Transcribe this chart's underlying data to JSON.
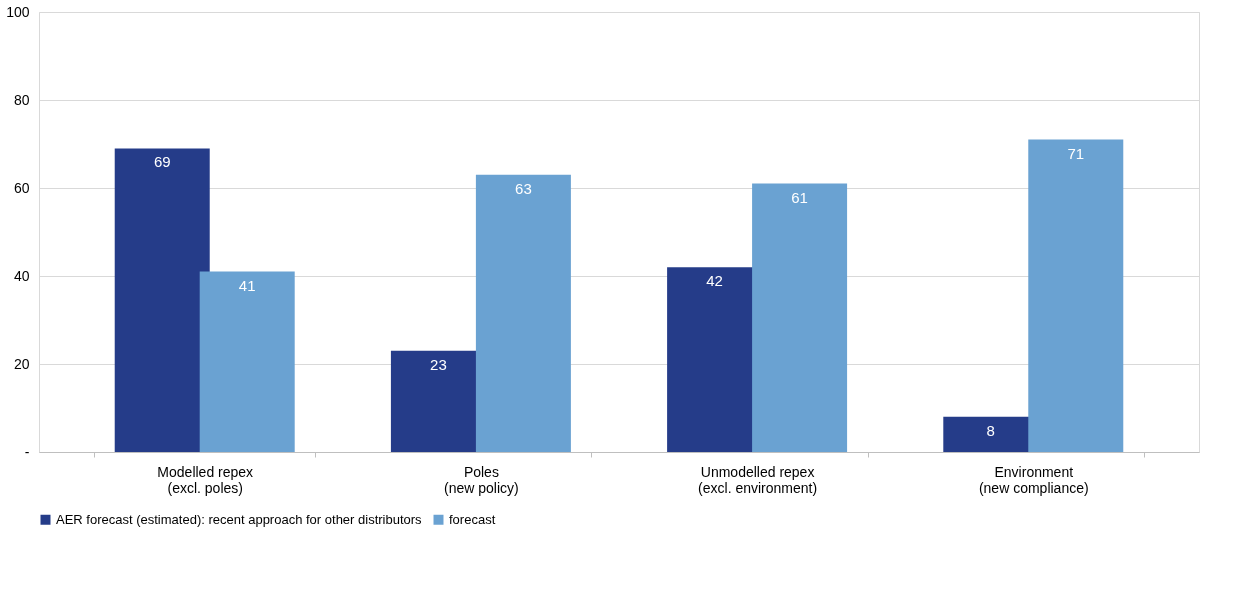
{
  "chart_data": {
    "type": "bar",
    "categories": [
      "Modelled repex\n(excl. poles)",
      "Poles\n(new policy)",
      "Unmodelled repex\n(excl. environment)",
      "Environment\n(new compliance)"
    ],
    "series": [
      {
        "name": "AER forecast (estimated): recent approach for other distributors",
        "color": "#253c89",
        "values": [
          69,
          23,
          42,
          8
        ]
      },
      {
        "name": "forecast",
        "color": "#6aa2d2",
        "values": [
          41,
          63,
          61,
          71
        ]
      }
    ],
    "ylim": [
      0,
      100
    ],
    "yticks": [
      {
        "value": 0,
        "label": "-"
      },
      20,
      40,
      60,
      80,
      100
    ],
    "grid": "y",
    "legend": "bottom",
    "data_labels": true
  }
}
